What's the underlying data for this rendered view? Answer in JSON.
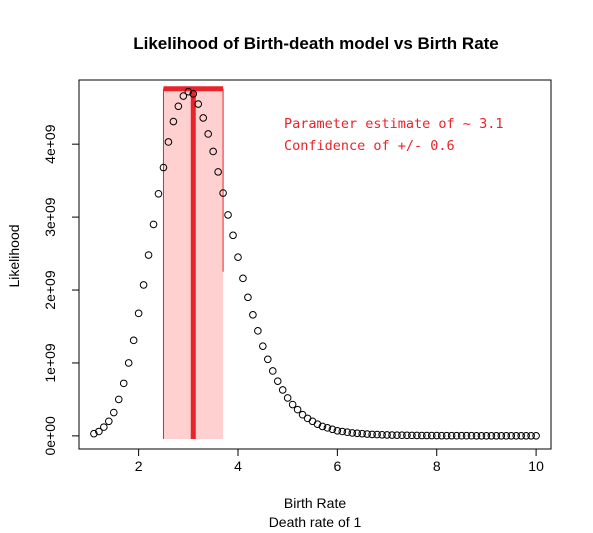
{
  "chart_data": {
    "type": "scatter",
    "title": "Likelihood of Birth-death model vs Birth Rate",
    "xlabel": "Birth Rate",
    "xlabel_sub": "Death rate of 1",
    "ylabel": "Likelihood",
    "xlim": [
      0.8,
      10.3
    ],
    "ylim": [
      -180000000.0,
      4880000000.0
    ],
    "x_ticks": [
      {
        "value": 2,
        "label": "2"
      },
      {
        "value": 4,
        "label": "4"
      },
      {
        "value": 6,
        "label": "6"
      },
      {
        "value": 8,
        "label": "8"
      },
      {
        "value": 10,
        "label": "10"
      }
    ],
    "y_ticks": [
      {
        "value": 0,
        "label": "0e+00"
      },
      {
        "value": 1000000000,
        "label": "1e+09"
      },
      {
        "value": 2000000000,
        "label": "2e+09"
      },
      {
        "value": 3000000000,
        "label": "3e+09"
      },
      {
        "value": 4000000000,
        "label": "4e+09"
      }
    ],
    "x": [
      1.1,
      1.2,
      1.3,
      1.4,
      1.5,
      1.6,
      1.7,
      1.8,
      1.9,
      2.0,
      2.1,
      2.2,
      2.3,
      2.4,
      2.5,
      2.6,
      2.7,
      2.8,
      2.9,
      3.0,
      3.1,
      3.2,
      3.3,
      3.4,
      3.5,
      3.6,
      3.7,
      3.8,
      3.9,
      4.0,
      4.1,
      4.2,
      4.3,
      4.4,
      4.5,
      4.6,
      4.7,
      4.8,
      4.9,
      5.0,
      5.1,
      5.2,
      5.3,
      5.4,
      5.5,
      5.6,
      5.7,
      5.8,
      5.9,
      6.0,
      6.1,
      6.2,
      6.3,
      6.4,
      6.5,
      6.6,
      6.7,
      6.8,
      6.9,
      7.0,
      7.1,
      7.2,
      7.3,
      7.4,
      7.5,
      7.6,
      7.7,
      7.8,
      7.9,
      8.0,
      8.1,
      8.2,
      8.3,
      8.4,
      8.5,
      8.6,
      8.7,
      8.8,
      8.9,
      9.0,
      9.1,
      9.2,
      9.3,
      9.4,
      9.5,
      9.6,
      9.7,
      9.8,
      9.9,
      10.0
    ],
    "y": [
      30000000.0,
      60000000.0,
      120000000.0,
      200000000.0,
      320000000.0,
      500000000.0,
      720000000.0,
      1000000000.0,
      1310000000.0,
      1680000000.0,
      2070000000.0,
      2480000000.0,
      2900000000.0,
      3320000000.0,
      3680000000.0,
      4030000000.0,
      4310000000.0,
      4520000000.0,
      4660000000.0,
      4720000000.0,
      4690000000.0,
      4550000000.0,
      4360000000.0,
      4140000000.0,
      3900000000.0,
      3620000000.0,
      3330000000.0,
      3030000000.0,
      2750000000.0,
      2450000000.0,
      2160000000.0,
      1900000000.0,
      1660000000.0,
      1440000000.0,
      1230000000.0,
      1050000000.0,
      890000000.0,
      750000000.0,
      630000000.0,
      520000000.0,
      430000000.0,
      360000000.0,
      290000000.0,
      240000000.0,
      200000000.0,
      160000000.0,
      130000000.0,
      110000000.0,
      90000000.0,
      70000000.0,
      60000000.0,
      50000000.0,
      40000000.0,
      35000000.0,
      30000000.0,
      25000000.0,
      20000000.0,
      18000000.0,
      15000000.0,
      13000000.0,
      11000000.0,
      10000000.0,
      9000000.0,
      8000000.0,
      7000000.0,
      6000000.0,
      5000000.0,
      5000000.0,
      4000000.0,
      4000000.0,
      3000000.0,
      3000000.0,
      3000000.0,
      2000000.0,
      2000000.0,
      2000000.0,
      2000000.0,
      1000000.0,
      1000000.0,
      1000000.0,
      1000000.0,
      1000000.0,
      1000000.0,
      1000000.0,
      1000000.0,
      1000000.0,
      1000000.0,
      1000000.0,
      1000000.0,
      1000000.0
    ],
    "estimate": 3.1,
    "interval": [
      2.5,
      3.7
    ],
    "interval_top": 4760000000.0,
    "annotations": [
      "Parameter estimate of ~ 3.1",
      "Confidence of +/- 0.6"
    ],
    "colors": {
      "band_fill": "#ffd0d0",
      "band_edge": "#e8242a",
      "estimate_line": "#e8242a",
      "annotation": "#e8242a",
      "points": "#000000",
      "axes": "#000000"
    }
  }
}
